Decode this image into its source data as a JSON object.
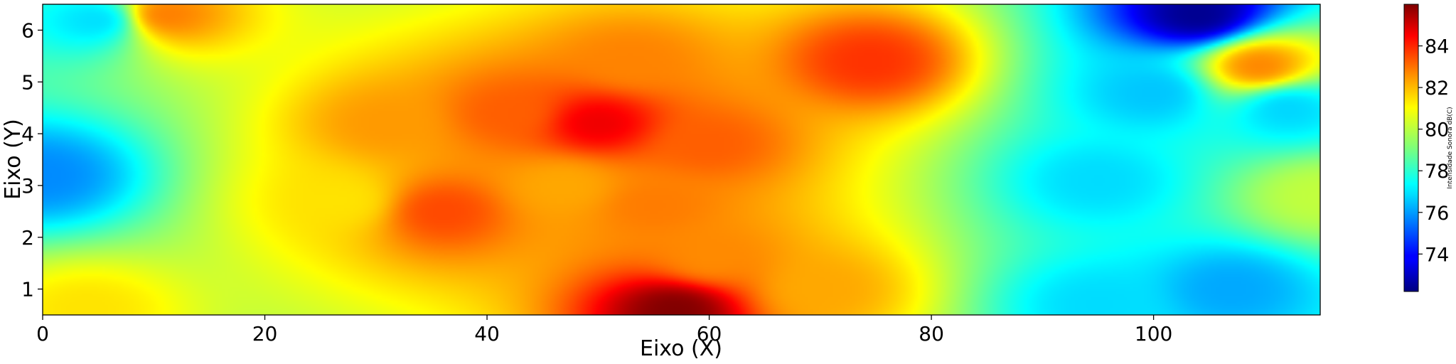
{
  "chart_data": {
    "type": "heatmap",
    "xlabel": "Eixo (X)",
    "ylabel": "Eixo (Y)",
    "xlim": [
      0,
      115
    ],
    "ylim": [
      0.5,
      6.5
    ],
    "xticks": [
      0,
      20,
      40,
      60,
      80,
      100
    ],
    "yticks": [
      1,
      2,
      3,
      4,
      5,
      6
    ],
    "colorbar": {
      "label": "Intensidade Sonora dB(C)",
      "range": [
        72.2,
        86.0
      ],
      "ticks": [
        74,
        76,
        78,
        80,
        82,
        84
      ],
      "colormap": "jet"
    },
    "base_level": 78.6,
    "hotspots": [
      {
        "x": 57,
        "y": 0.6,
        "value": 86.0
      },
      {
        "x": 50,
        "y": 4.2,
        "value": 84.5
      },
      {
        "x": 36,
        "y": 2.5,
        "value": 83.3
      },
      {
        "x": 31,
        "y": 4.2,
        "value": 82.2
      },
      {
        "x": 42,
        "y": 4.4,
        "value": 83.0
      },
      {
        "x": 60,
        "y": 3.8,
        "value": 83.0
      },
      {
        "x": 55,
        "y": 2.6,
        "value": 82.6
      },
      {
        "x": 53,
        "y": 5.4,
        "value": 82.5
      },
      {
        "x": 47,
        "y": 3.0,
        "value": 82.0
      },
      {
        "x": 60,
        "y": 1.6,
        "value": 82.4
      },
      {
        "x": 70,
        "y": 1.0,
        "value": 82.0
      },
      {
        "x": 74.5,
        "y": 5.4,
        "value": 83.6
      },
      {
        "x": 11,
        "y": 6.3,
        "value": 82.6
      },
      {
        "x": 109.5,
        "y": 5.3,
        "value": 82.5
      },
      {
        "x": 27,
        "y": 2.7,
        "value": 81.2
      },
      {
        "x": 4,
        "y": 0.6,
        "value": 81.2
      },
      {
        "x": 0,
        "y": 3.2,
        "value": 75.8
      },
      {
        "x": 5,
        "y": 6.2,
        "value": 76.9
      },
      {
        "x": 104,
        "y": 6.3,
        "value": 72.4
      },
      {
        "x": 100,
        "y": 4.8,
        "value": 76.6
      },
      {
        "x": 95,
        "y": 3.1,
        "value": 76.9
      },
      {
        "x": 95,
        "y": 0.7,
        "value": 76.9
      },
      {
        "x": 107,
        "y": 1.0,
        "value": 76.2
      },
      {
        "x": 112,
        "y": 4.5,
        "value": 76.8
      },
      {
        "x": 115,
        "y": 2.8,
        "value": 80.0
      }
    ]
  }
}
